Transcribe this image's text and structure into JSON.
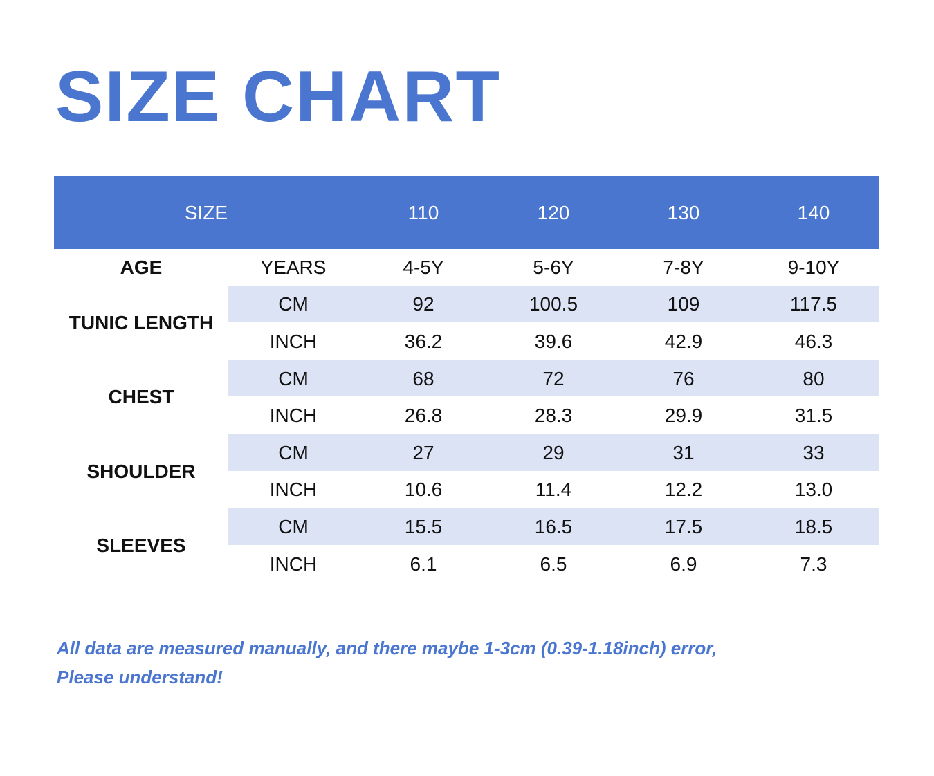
{
  "title": "SIZE CHART",
  "table": {
    "header": {
      "label": "SIZE",
      "sizes": [
        "110",
        "120",
        "130",
        "140"
      ]
    },
    "age": {
      "label": "AGE",
      "unit": "YEARS",
      "values": [
        "4-5Y",
        "5-6Y",
        "7-8Y",
        "9-10Y"
      ]
    },
    "groups": [
      {
        "label": "TUNIC LENGTH",
        "rows": [
          {
            "unit": "CM",
            "values": [
              "92",
              "100.5",
              "109",
              "117.5"
            ]
          },
          {
            "unit": "INCH",
            "values": [
              "36.2",
              "39.6",
              "42.9",
              "46.3"
            ]
          }
        ]
      },
      {
        "label": "CHEST",
        "rows": [
          {
            "unit": "CM",
            "values": [
              "68",
              "72",
              "76",
              "80"
            ]
          },
          {
            "unit": "INCH",
            "values": [
              "26.8",
              "28.3",
              "29.9",
              "31.5"
            ]
          }
        ]
      },
      {
        "label": "SHOULDER",
        "rows": [
          {
            "unit": "CM",
            "values": [
              "27",
              "29",
              "31",
              "33"
            ]
          },
          {
            "unit": "INCH",
            "values": [
              "10.6",
              "11.4",
              "12.2",
              "13.0"
            ]
          }
        ]
      },
      {
        "label": "SLEEVES",
        "rows": [
          {
            "unit": "CM",
            "values": [
              "15.5",
              "16.5",
              "17.5",
              "18.5"
            ]
          },
          {
            "unit": "INCH",
            "values": [
              "6.1",
              "6.5",
              "6.9",
              "7.3"
            ]
          }
        ]
      }
    ]
  },
  "note": {
    "lines": [
      "All data are measured manually, and there maybe 1-3cm (0.39-1.18inch) error,",
      "Please understand!"
    ]
  }
}
